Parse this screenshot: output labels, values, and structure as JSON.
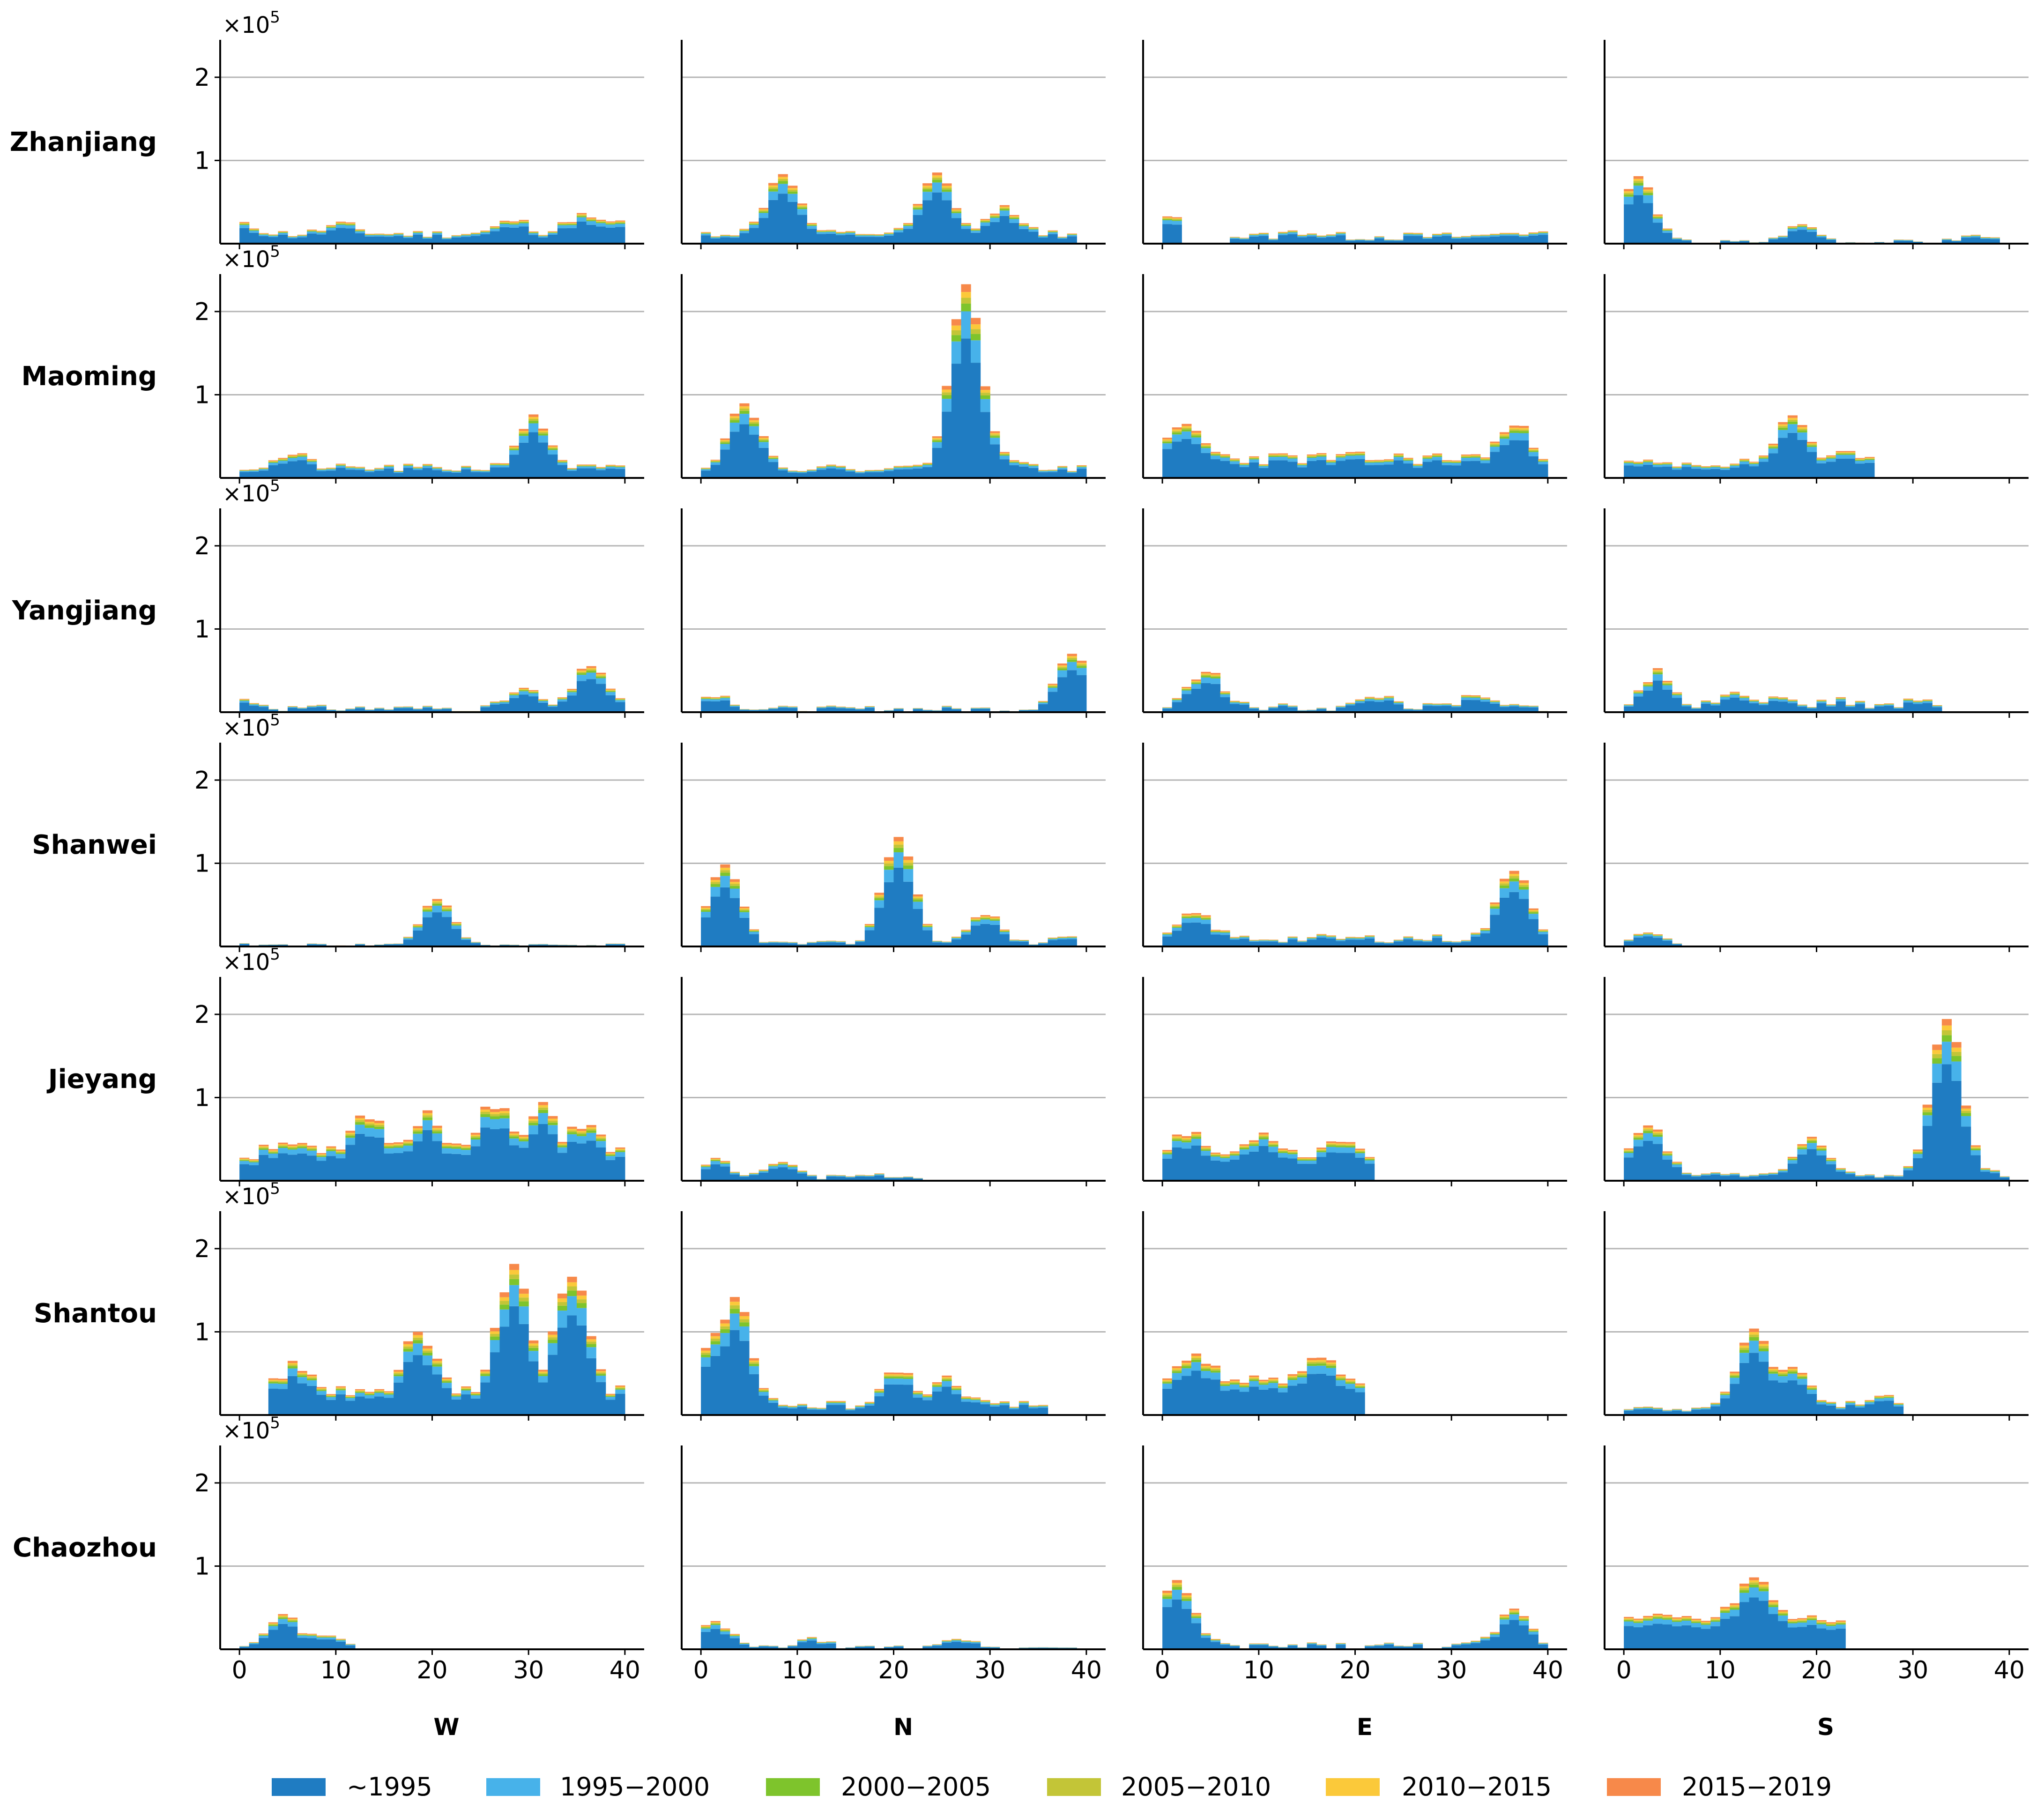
{
  "chart_data": {
    "type": "bar",
    "stacked": true,
    "layout": "grid of stacked histograms (rows = cities, columns = directions)",
    "rows": [
      "Zhanjiang",
      "Maoming",
      "Yangjiang",
      "Shanwei",
      "Jieyang",
      "Shantou",
      "Chaozhou"
    ],
    "columns": [
      "W",
      "N",
      "E",
      "S"
    ],
    "xlim": [
      -2,
      42
    ],
    "xticks": [
      0,
      10,
      20,
      30,
      40
    ],
    "xtick_labels": [
      "0",
      "10",
      "20",
      "30",
      "40"
    ],
    "ylim": [
      0,
      2.45
    ],
    "yticks": [
      1,
      2
    ],
    "ytick_labels": [
      "1",
      "2"
    ],
    "y_multiplier_prefix": "×10",
    "y_multiplier_exponent": "5",
    "grid": "horizontal",
    "legend_position": "bottom",
    "legend": [
      {
        "label": "~1995",
        "color": "#1f7cc2"
      },
      {
        "label": "1995−2000",
        "color": "#47b2ea"
      },
      {
        "label": "2000−2005",
        "color": "#7ec42c"
      },
      {
        "label": "2005−2010",
        "color": "#c3c537"
      },
      {
        "label": "2010−2015",
        "color": "#fbc93a"
      },
      {
        "label": "2015−2019",
        "color": "#f7894a"
      }
    ],
    "panels": [
      [
        {
          "peaks": [
            [
              0,
              0.22
            ],
            [
              10,
              0.23
            ],
            [
              28,
              0.28
            ],
            [
              35,
              0.34
            ],
            [
              38,
              0.28
            ]
          ],
          "base": 0.12,
          "start": 0,
          "end": 40,
          "noise": 0.05,
          "spike_at": [
            28
          ],
          "seed": 11
        },
        {
          "peaks": [
            [
              8,
              0.85
            ],
            [
              24,
              0.83
            ],
            [
              31,
              0.44
            ]
          ],
          "base": 0.12,
          "start": 0,
          "end": 39,
          "noise": 0.04,
          "spike_at": [
            7,
            23
          ],
          "seed": 12
        },
        {
          "peaks": [
            [
              0,
              0.32
            ],
            [
              14,
              0.15
            ],
            [
              36,
              0.15
            ]
          ],
          "base": 0.09,
          "start": 0,
          "end": 40,
          "noise": 0.05,
          "gap": [
            2,
            6
          ],
          "seed": 13
        },
        {
          "peaks": [
            [
              1,
              0.8
            ],
            [
              18,
              0.23
            ],
            [
              36,
              0.1
            ]
          ],
          "base": 0.02,
          "start": 0,
          "end": 40,
          "noise": 0.03,
          "seed": 14
        }
      ],
      [
        {
          "peaks": [
            [
              5,
              0.28
            ],
            [
              30,
              0.72
            ]
          ],
          "base": 0.12,
          "start": 0,
          "end": 40,
          "noise": 0.05,
          "seed": 21
        },
        {
          "peaks": [
            [
              4,
              0.9
            ],
            [
              27,
              2.3
            ],
            [
              28,
              1.15
            ],
            [
              30,
              0.4
            ]
          ],
          "base": 0.12,
          "start": 0,
          "end": 40,
          "noise": 0.04,
          "spike_at": [
            27
          ],
          "seed": 22
        },
        {
          "peaks": [
            [
              2,
              0.62
            ],
            [
              36,
              0.62
            ]
          ],
          "base": 0.24,
          "start": 0,
          "end": 40,
          "noise": 0.08,
          "seed": 23
        },
        {
          "peaks": [
            [
              17,
              0.75
            ],
            [
              23,
              0.3
            ]
          ],
          "base": 0.18,
          "start": 0,
          "end": 26,
          "noise": 0.05,
          "seed": 24
        }
      ],
      [
        {
          "peaks": [
            [
              0,
              0.15
            ],
            [
              29,
              0.28
            ],
            [
              36,
              0.58
            ]
          ],
          "base": 0.05,
          "start": 0,
          "end": 40,
          "noise": 0.04,
          "seed": 31
        },
        {
          "peaks": [
            [
              1,
              0.22
            ],
            [
              38,
              0.7
            ]
          ],
          "base": 0.04,
          "start": 0,
          "end": 40,
          "noise": 0.04,
          "seed": 32
        },
        {
          "peaks": [
            [
              4,
              0.52
            ],
            [
              22,
              0.2
            ],
            [
              32,
              0.18
            ]
          ],
          "base": 0.06,
          "start": 0,
          "end": 40,
          "noise": 0.05,
          "seed": 33
        },
        {
          "peaks": [
            [
              3,
              0.48
            ],
            [
              11,
              0.28
            ],
            [
              16,
              0.2
            ],
            [
              22,
              0.15
            ],
            [
              30,
              0.15
            ]
          ],
          "base": 0.06,
          "start": 0,
          "end": 33,
          "noise": 0.05,
          "seed": 34
        }
      ],
      [
        {
          "peaks": [
            [
              20,
              0.58
            ]
          ],
          "base": 0.02,
          "start": 0,
          "end": 40,
          "noise": 0.02,
          "seed": 41
        },
        {
          "peaks": [
            [
              2,
              0.97
            ],
            [
              20,
              1.32
            ],
            [
              29,
              0.4
            ],
            [
              38,
              0.15
            ]
          ],
          "base": 0.04,
          "start": 0,
          "end": 39,
          "noise": 0.03,
          "seed": 42
        },
        {
          "peaks": [
            [
              3,
              0.4
            ],
            [
              36,
              0.95
            ]
          ],
          "base": 0.1,
          "start": 0,
          "end": 40,
          "noise": 0.05,
          "seed": 43
        },
        {
          "peaks": [
            [
              2,
              0.18
            ]
          ],
          "base": 0.0,
          "start": 0,
          "end": 6,
          "noise": 0.02,
          "seed": 44
        }
      ],
      [
        {
          "peaks": [
            [
              4,
              0.5
            ],
            [
              13,
              0.78
            ],
            [
              19,
              0.84
            ],
            [
              26,
              0.9
            ],
            [
              31,
              0.85
            ],
            [
              35,
              0.7
            ]
          ],
          "base": 0.3,
          "start": 0,
          "end": 40,
          "noise": 0.1,
          "seed": 51
        },
        {
          "peaks": [
            [
              1,
              0.25
            ],
            [
              8,
              0.22
            ],
            [
              18,
              0.08
            ]
          ],
          "base": 0.04,
          "start": 0,
          "end": 23,
          "noise": 0.03,
          "seed": 52
        },
        {
          "peaks": [
            [
              2,
              0.58
            ],
            [
              10,
              0.58
            ],
            [
              18,
              0.5
            ]
          ],
          "base": 0.3,
          "start": 0,
          "end": 22,
          "noise": 0.06,
          "seed": 53
        },
        {
          "peaks": [
            [
              2,
              0.68
            ],
            [
              19,
              0.48
            ],
            [
              33,
              1.98
            ]
          ],
          "base": 0.08,
          "start": 0,
          "end": 40,
          "noise": 0.05,
          "seed": 54
        }
      ],
      [
        {
          "peaks": [
            [
              5,
              0.58
            ],
            [
              18,
              0.98
            ],
            [
              28,
              1.8
            ],
            [
              34,
              1.72
            ]
          ],
          "base": 0.25,
          "start": 3,
          "end": 40,
          "noise": 0.1,
          "seed": 61
        },
        {
          "peaks": [
            [
              1,
              0.95
            ],
            [
              3,
              1.42
            ],
            [
              20,
              0.55
            ],
            [
              25,
              0.45
            ]
          ],
          "base": 0.12,
          "start": 0,
          "end": 36,
          "noise": 0.05,
          "seed": 62
        },
        {
          "peaks": [
            [
              3,
              0.75
            ],
            [
              16,
              0.75
            ]
          ],
          "base": 0.4,
          "start": 0,
          "end": 21,
          "noise": 0.08,
          "seed": 63
        },
        {
          "peaks": [
            [
              13,
              1.05
            ],
            [
              17,
              0.58
            ],
            [
              26,
              0.25
            ]
          ],
          "base": 0.1,
          "start": 0,
          "end": 29,
          "noise": 0.05,
          "seed": 64
        }
      ],
      [
        {
          "peaks": [
            [
              4,
              0.42
            ],
            [
              8,
              0.18
            ]
          ],
          "base": 0.05,
          "start": 0,
          "end": 12,
          "noise": 0.03,
          "seed": 71
        },
        {
          "peaks": [
            [
              1,
              0.32
            ],
            [
              11,
              0.12
            ],
            [
              26,
              0.14
            ]
          ],
          "base": 0.02,
          "start": 0,
          "end": 40,
          "noise": 0.03,
          "seed": 72
        },
        {
          "peaks": [
            [
              1,
              0.82
            ],
            [
              36,
              0.45
            ]
          ],
          "base": 0.04,
          "start": 0,
          "end": 40,
          "noise": 0.05,
          "seed": 73
        },
        {
          "peaks": [
            [
              13,
              0.88
            ]
          ],
          "base": 0.38,
          "start": 0,
          "end": 23,
          "noise": 0.07,
          "seed": 74
        }
      ]
    ]
  }
}
